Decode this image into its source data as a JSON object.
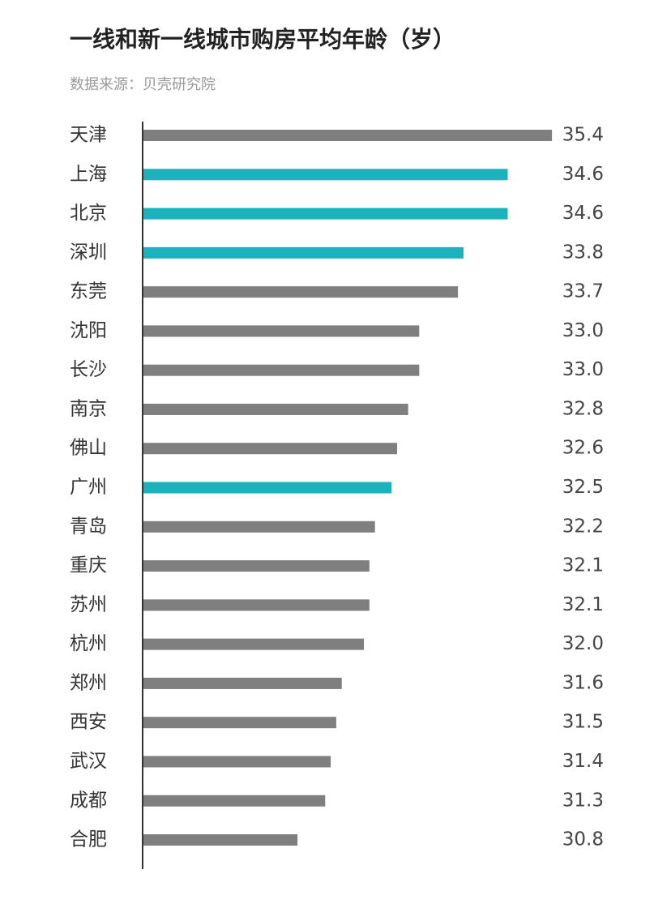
{
  "chart_data": {
    "type": "hbar",
    "title": "一线和新一线城市购房平均年龄（岁）",
    "subtitle": "数据来源：贝壳研究院",
    "categories": [
      "天津",
      "上海",
      "北京",
      "深圳",
      "东莞",
      "沈阳",
      "长沙",
      "南京",
      "佛山",
      "广州",
      "青岛",
      "重庆",
      "苏州",
      "杭州",
      "郑州",
      "西安",
      "武汉",
      "成都",
      "合肥"
    ],
    "values": [
      35.4,
      34.6,
      34.6,
      33.8,
      33.7,
      33.0,
      33.0,
      32.8,
      32.6,
      32.5,
      32.2,
      32.1,
      32.1,
      32.0,
      31.6,
      31.5,
      31.4,
      31.3,
      30.8
    ],
    "value_labels": [
      "35.4",
      "34.6",
      "34.6",
      "33.8",
      "33.7",
      "33.0",
      "33.0",
      "32.8",
      "32.6",
      "32.5",
      "32.2",
      "32.1",
      "32.1",
      "32.0",
      "31.6",
      "31.5",
      "31.4",
      "31.3",
      "30.8"
    ],
    "colors": [
      "#7f7f7f",
      "#1ab3bd",
      "#1ab3bd",
      "#1ab3bd",
      "#7f7f7f",
      "#7f7f7f",
      "#7f7f7f",
      "#7f7f7f",
      "#7f7f7f",
      "#1ab3bd",
      "#7f7f7f",
      "#7f7f7f",
      "#7f7f7f",
      "#7f7f7f",
      "#7f7f7f",
      "#7f7f7f",
      "#7f7f7f",
      "#7f7f7f",
      "#7f7f7f"
    ],
    "xlim": [
      28,
      36
    ]
  }
}
